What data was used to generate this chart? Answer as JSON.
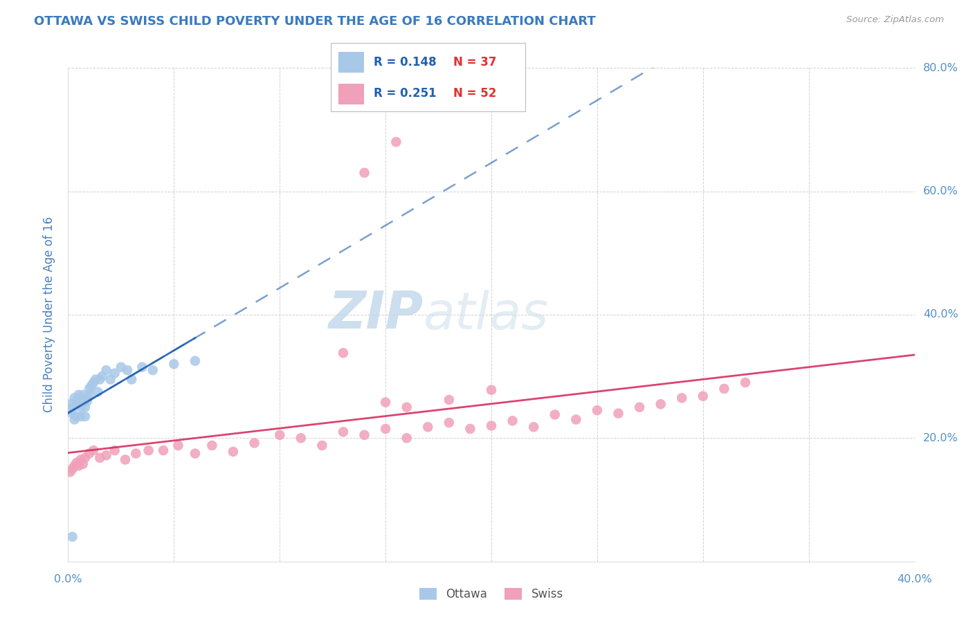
{
  "title": "OTTAWA VS SWISS CHILD POVERTY UNDER THE AGE OF 16 CORRELATION CHART",
  "source": "Source: ZipAtlas.com",
  "ylabel": "Child Poverty Under the Age of 16",
  "xlim": [
    0.0,
    0.4
  ],
  "ylim": [
    0.0,
    0.8
  ],
  "xticks": [
    0.0,
    0.05,
    0.1,
    0.15,
    0.2,
    0.25,
    0.3,
    0.35,
    0.4
  ],
  "yticks": [
    0.0,
    0.2,
    0.4,
    0.6,
    0.8
  ],
  "title_color": "#3a7abf",
  "axis_label_color": "#4a80c0",
  "tick_label_color": "#5090c8",
  "ottawa_color": "#a8c8e8",
  "swiss_color": "#f0a0b8",
  "ottawa_line_color": "#2060b0",
  "swiss_line_color": "#d83060",
  "watermark_color": "#ccddf0",
  "legend_r_ottawa": "R = 0.148",
  "legend_n_ottawa": "N = 37",
  "legend_r_swiss": "R = 0.251",
  "legend_n_swiss": "N = 52",
  "ottawa_x": [
    0.001,
    0.001,
    0.002,
    0.002,
    0.003,
    0.003,
    0.004,
    0.004,
    0.005,
    0.005,
    0.006,
    0.006,
    0.007,
    0.007,
    0.008,
    0.008,
    0.009,
    0.009,
    0.01,
    0.01,
    0.011,
    0.012,
    0.013,
    0.014,
    0.015,
    0.016,
    0.018,
    0.02,
    0.022,
    0.025,
    0.028,
    0.03,
    0.035,
    0.04,
    0.05,
    0.06,
    0.002
  ],
  "ottawa_y": [
    0.245,
    0.255,
    0.24,
    0.25,
    0.265,
    0.23,
    0.26,
    0.235,
    0.27,
    0.255,
    0.25,
    0.235,
    0.26,
    0.27,
    0.235,
    0.25,
    0.26,
    0.265,
    0.27,
    0.28,
    0.285,
    0.29,
    0.295,
    0.275,
    0.295,
    0.3,
    0.31,
    0.295,
    0.305,
    0.315,
    0.31,
    0.295,
    0.315,
    0.31,
    0.32,
    0.325,
    0.04
  ],
  "swiss_x": [
    0.001,
    0.002,
    0.003,
    0.004,
    0.005,
    0.006,
    0.007,
    0.008,
    0.01,
    0.012,
    0.015,
    0.018,
    0.022,
    0.027,
    0.032,
    0.038,
    0.045,
    0.052,
    0.06,
    0.068,
    0.078,
    0.088,
    0.1,
    0.11,
    0.12,
    0.13,
    0.14,
    0.15,
    0.16,
    0.17,
    0.18,
    0.19,
    0.2,
    0.21,
    0.22,
    0.23,
    0.24,
    0.25,
    0.26,
    0.27,
    0.28,
    0.29,
    0.3,
    0.31,
    0.32,
    0.13,
    0.15,
    0.16,
    0.18,
    0.2,
    0.14,
    0.155
  ],
  "swiss_y": [
    0.145,
    0.15,
    0.155,
    0.16,
    0.155,
    0.165,
    0.158,
    0.168,
    0.175,
    0.18,
    0.168,
    0.172,
    0.18,
    0.165,
    0.175,
    0.18,
    0.18,
    0.188,
    0.175,
    0.188,
    0.178,
    0.192,
    0.205,
    0.2,
    0.188,
    0.21,
    0.205,
    0.215,
    0.2,
    0.218,
    0.225,
    0.215,
    0.22,
    0.228,
    0.218,
    0.238,
    0.23,
    0.245,
    0.24,
    0.25,
    0.255,
    0.265,
    0.268,
    0.28,
    0.29,
    0.338,
    0.258,
    0.25,
    0.262,
    0.278,
    0.63,
    0.68
  ]
}
